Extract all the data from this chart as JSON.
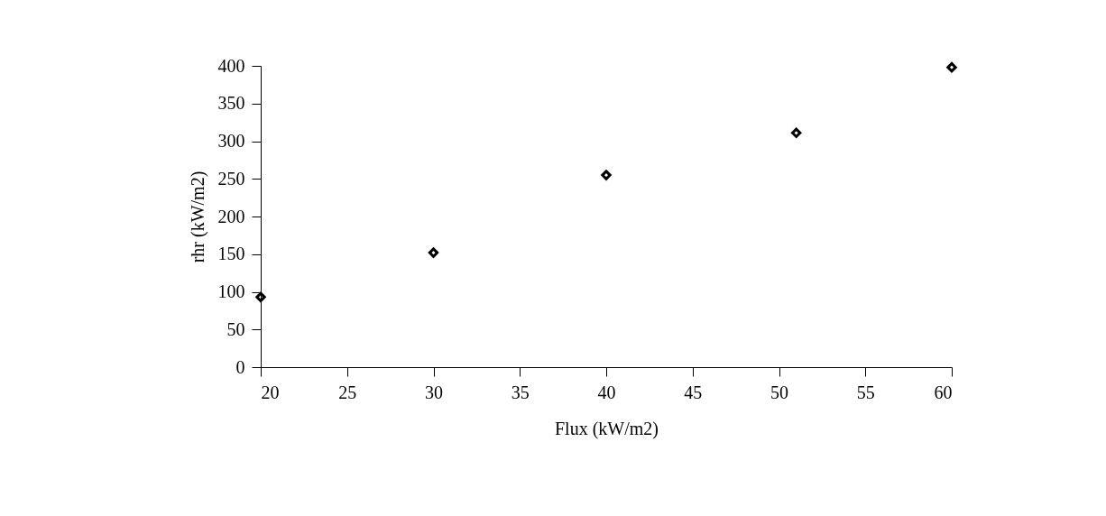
{
  "chart_data": {
    "type": "scatter",
    "xlabel": "Flux (kW/m2)",
    "ylabel": "rhr (kW/m2)",
    "x": [
      20,
      30,
      40,
      51,
      60
    ],
    "series": [
      {
        "color": "#000000",
        "values": [
          93,
          152,
          255,
          311,
          398
        ]
      }
    ],
    "xlim": [
      20,
      60
    ],
    "xticks": [
      20,
      25,
      30,
      35,
      40,
      45,
      50,
      55,
      60
    ],
    "ylim": [
      0,
      400
    ],
    "yticks": [
      0,
      50,
      100,
      150,
      200,
      250,
      300,
      350,
      400
    ],
    "marker": "diamond",
    "grid": false
  }
}
